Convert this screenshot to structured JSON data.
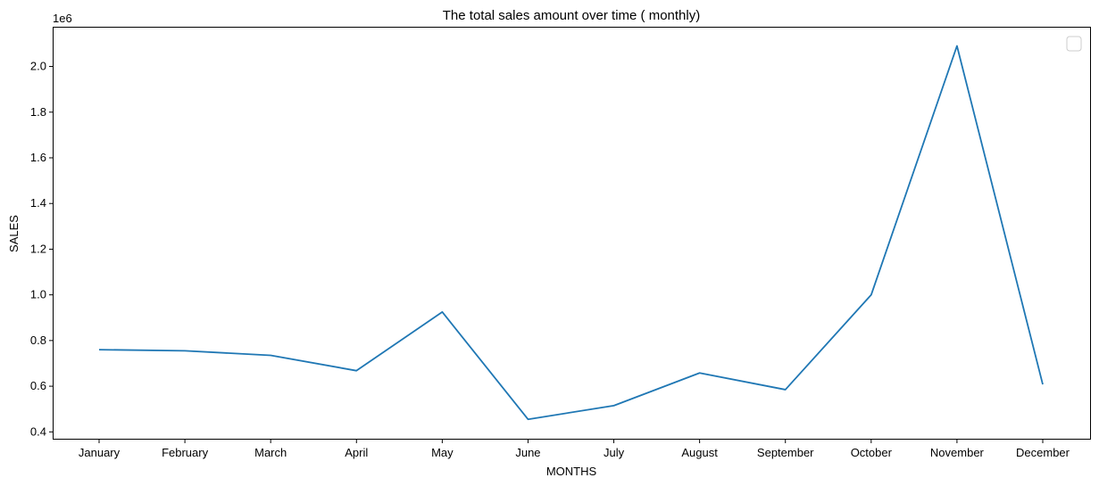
{
  "chart_data": {
    "type": "line",
    "title": "The total sales amount over time ( monthly)",
    "xlabel": "MONTHS",
    "ylabel": "SALES",
    "offset_label": "1e6",
    "categories": [
      "January",
      "February",
      "March",
      "April",
      "May",
      "June",
      "July",
      "August",
      "September",
      "October",
      "November",
      "December"
    ],
    "series": [
      {
        "values": [
          760000,
          755000,
          735000,
          668000,
          925000,
          455000,
          515000,
          658000,
          585000,
          1000000,
          2090000,
          608000
        ]
      }
    ],
    "ylim": [
      0.37,
      2.17
    ],
    "yticks": [
      0.4,
      0.6,
      0.8,
      1.0,
      1.2,
      1.4,
      1.6,
      1.8,
      2.0
    ],
    "ytick_labels": [
      "0.4",
      "0.6",
      "0.8",
      "1.0",
      "1.2",
      "1.4",
      "1.6",
      "1.8",
      "2.0"
    ],
    "y_scale_divisor": 1000000,
    "line_color": "#1f77b4",
    "grid": false,
    "legend": "top-right"
  }
}
